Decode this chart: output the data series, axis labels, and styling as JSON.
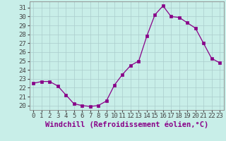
{
  "x": [
    0,
    1,
    2,
    3,
    4,
    5,
    6,
    7,
    8,
    9,
    10,
    11,
    12,
    13,
    14,
    15,
    16,
    17,
    18,
    19,
    20,
    21,
    22,
    23
  ],
  "y": [
    22.5,
    22.7,
    22.7,
    22.2,
    21.2,
    20.2,
    20.0,
    19.9,
    20.0,
    20.5,
    22.3,
    23.5,
    24.5,
    25.0,
    27.8,
    30.2,
    31.2,
    30.0,
    29.9,
    29.3,
    28.7,
    27.0,
    25.3,
    24.8
  ],
  "xlabel": "Windchill (Refroidissement éolien,°C)",
  "ylim": [
    19.5,
    31.7
  ],
  "xlim": [
    -0.5,
    23.5
  ],
  "line_color": "#880088",
  "marker": "s",
  "marker_size": 2.5,
  "bg_color": "#c8eee8",
  "grid_color": "#aacccc",
  "yticks": [
    20,
    21,
    22,
    23,
    24,
    25,
    26,
    27,
    28,
    29,
    30,
    31
  ],
  "xtick_labels": [
    "0",
    "1",
    "2",
    "3",
    "4",
    "5",
    "6",
    "7",
    "8",
    "9",
    "10",
    "11",
    "12",
    "13",
    "14",
    "15",
    "16",
    "17",
    "18",
    "19",
    "20",
    "21",
    "22",
    "23"
  ],
  "tick_fontsize": 6.5,
  "xlabel_fontsize": 7.5
}
